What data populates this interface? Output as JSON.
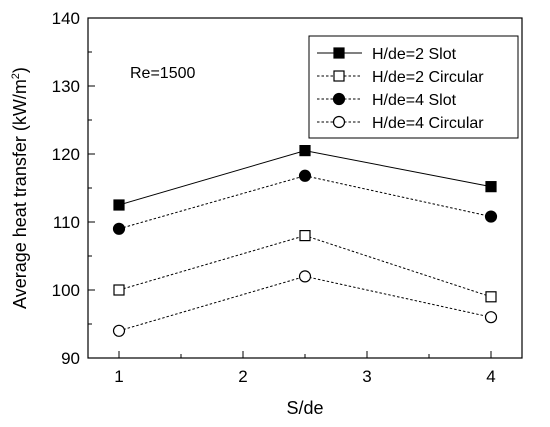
{
  "chart_data": {
    "type": "line",
    "title": "",
    "xlabel": "S/de",
    "ylabel_base": "Average heat transfer (kW/m",
    "ylabel_sup": "2",
    "ylabel_tail": ")",
    "x": [
      1,
      2.5,
      4
    ],
    "xlim": [
      0.75,
      4.25
    ],
    "ylim": [
      90,
      140
    ],
    "xticks": [
      1,
      2,
      3,
      4
    ],
    "yticks": [
      90,
      100,
      110,
      120,
      130,
      140
    ],
    "grid": false,
    "legend_position": "top-right",
    "annotation": "Re=1500",
    "series": [
      {
        "name": "H/de=2 Slot",
        "marker": "square",
        "filled": true,
        "dash": "solid",
        "values": [
          112.5,
          120.5,
          115.2
        ]
      },
      {
        "name": "H/de=2 Circular",
        "marker": "square",
        "filled": false,
        "dash": "dotted",
        "values": [
          100,
          108,
          99
        ]
      },
      {
        "name": "H/de=4 Slot",
        "marker": "circle",
        "filled": true,
        "dash": "dotted",
        "values": [
          109,
          116.8,
          110.8
        ]
      },
      {
        "name": "H/de=4 Circular",
        "marker": "circle",
        "filled": false,
        "dash": "dotted",
        "values": [
          94,
          102,
          96
        ]
      }
    ]
  }
}
